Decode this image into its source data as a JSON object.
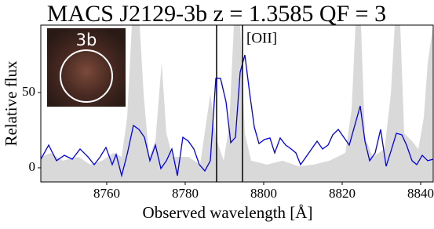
{
  "chart_data": {
    "type": "line",
    "title": "MACS J2129-3b z = 1.3585 QF = 3",
    "xlabel": "Observed wavelength [Å]",
    "ylabel": "Relative flux",
    "xlim": [
      8743.2,
      8843.2
    ],
    "ylim": [
      -9.4,
      94.8
    ],
    "xticks": [
      8760,
      8780,
      8800,
      8820,
      8840
    ],
    "yticks": [
      0,
      50
    ],
    "vlines": [
      8788.0,
      8794.6
    ],
    "annotation": {
      "text": "[OII]",
      "x": 8794.6
    },
    "inset": {
      "label": "3b"
    },
    "series": [
      {
        "style": "area",
        "color": "#d9d9d9",
        "x": [
          8743.2,
          8745.8,
          8748.8,
          8752.8,
          8755.8,
          8758.8,
          8761.8,
          8763.8,
          8765.2,
          8766.4,
          8768.4,
          8769.4,
          8770.8,
          8772.4,
          8774.0,
          8775.2,
          8776.8,
          8780.8,
          8783.8,
          8786.4,
          8787.8,
          8789.8,
          8791.2,
          8792.4,
          8794.0,
          8795.2,
          8796.8,
          8800.8,
          8804.8,
          8808.8,
          8812.8,
          8816.8,
          8820.8,
          8822.4,
          8823.4,
          8824.8,
          8825.8,
          8827.8,
          8830.8,
          8832.4,
          8833.4,
          8834.8,
          8835.8,
          8837.8,
          8839.4,
          8840.8,
          8841.8,
          8843.2
        ],
        "values": [
          7.3,
          9.9,
          4.7,
          7.3,
          2.1,
          4.7,
          9.9,
          7.3,
          33.3,
          94.8,
          94.8,
          49.0,
          7.3,
          17.7,
          69.8,
          22.9,
          7.3,
          7.3,
          2.1,
          49.0,
          20.3,
          4.7,
          28.1,
          94.8,
          94.8,
          22.9,
          4.7,
          2.1,
          4.7,
          1.0,
          2.1,
          4.7,
          9.9,
          38.5,
          94.8,
          94.8,
          20.3,
          7.3,
          12.5,
          49.0,
          94.8,
          94.8,
          22.9,
          17.7,
          12.5,
          33.3,
          69.8,
          94.8
        ]
      },
      {
        "style": "line",
        "color": "#0000ee",
        "x": [
          8743.2,
          8745.2,
          8747.2,
          8749.2,
          8751.2,
          8753.2,
          8755.2,
          8756.8,
          8758.2,
          8759.8,
          8761.4,
          8762.4,
          8763.8,
          8765.2,
          8766.8,
          8768.2,
          8769.6,
          8771.0,
          8772.4,
          8773.8,
          8775.2,
          8776.6,
          8778.0,
          8779.4,
          8780.8,
          8782.2,
          8783.6,
          8785.0,
          8786.4,
          8787.8,
          8789.0,
          8790.4,
          8791.6,
          8792.8,
          8794.0,
          8795.2,
          8796.4,
          8797.6,
          8798.8,
          8800.2,
          8801.6,
          8802.8,
          8804.2,
          8805.6,
          8807.0,
          8808.2,
          8809.4,
          8810.8,
          8812.2,
          8813.6,
          8815.0,
          8816.4,
          8817.6,
          8819.0,
          8820.4,
          8821.8,
          8823.2,
          8824.6,
          8825.8,
          8827.0,
          8828.4,
          8829.8,
          8831.2,
          8832.6,
          8833.8,
          8835.2,
          8836.4,
          8837.8,
          8839.0,
          8840.4,
          8841.8,
          8843.2
        ],
        "values": [
          5.7,
          15.1,
          4.7,
          8.3,
          5.7,
          12.5,
          7.3,
          2.1,
          6.8,
          13.5,
          2.1,
          8.9,
          -5.2,
          8.9,
          28.1,
          25.5,
          20.3,
          4.7,
          15.1,
          -0.5,
          4.7,
          12.5,
          -5.2,
          20.3,
          17.7,
          12.5,
          2.1,
          -2.1,
          4.7,
          59.4,
          59.4,
          43.8,
          16.7,
          20.3,
          63.5,
          75.0,
          50.0,
          27.1,
          16.1,
          18.8,
          19.8,
          9.9,
          19.8,
          15.1,
          12.5,
          9.9,
          2.1,
          7.3,
          12.5,
          17.7,
          12.5,
          15.1,
          21.9,
          25.5,
          20.3,
          15.1,
          28.1,
          41.1,
          17.7,
          4.7,
          9.9,
          25.5,
          1.0,
          12.5,
          22.9,
          21.9,
          15.1,
          4.7,
          2.1,
          8.3,
          4.7,
          5.7
        ]
      }
    ]
  }
}
